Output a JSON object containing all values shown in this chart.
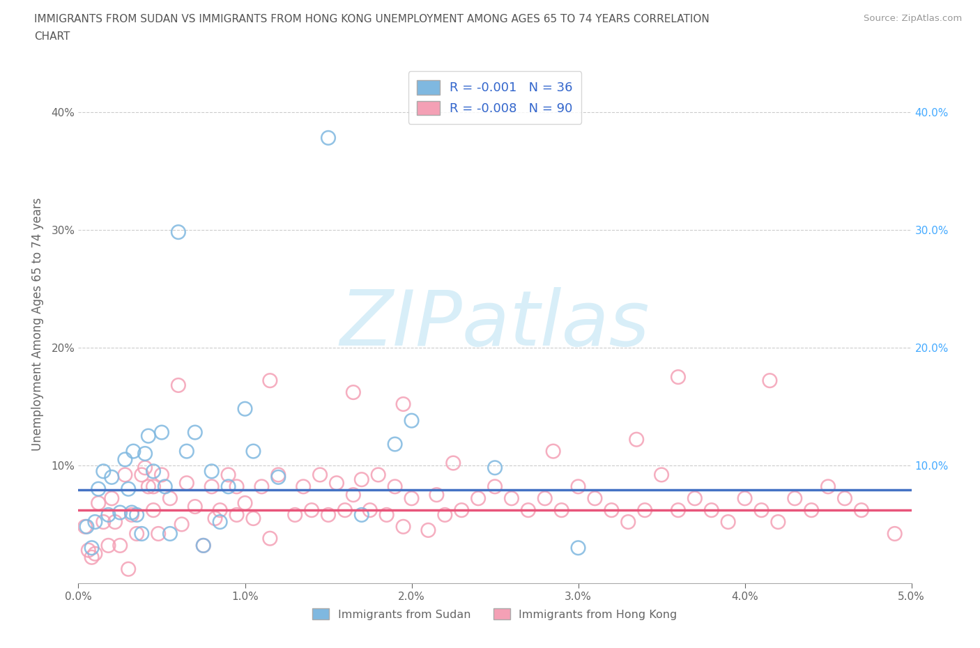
{
  "title_line1": "IMMIGRANTS FROM SUDAN VS IMMIGRANTS FROM HONG KONG UNEMPLOYMENT AMONG AGES 65 TO 74 YEARS CORRELATION",
  "title_line2": "CHART",
  "source": "Source: ZipAtlas.com",
  "ylabel_left": "Unemployment Among Ages 65 to 74 years",
  "xlim": [
    0.0,
    0.05
  ],
  "ylim": [
    0.0,
    0.44
  ],
  "xtick_vals": [
    0.0,
    0.01,
    0.02,
    0.03,
    0.04,
    0.05
  ],
  "xtick_labels": [
    "0.0%",
    "1.0%",
    "2.0%",
    "3.0%",
    "4.0%",
    "5.0%"
  ],
  "ytick_vals_left": [
    0.0,
    0.1,
    0.2,
    0.3,
    0.4
  ],
  "ytick_labels_left": [
    "",
    "10%",
    "20%",
    "30%",
    "40%"
  ],
  "ytick_vals_right": [
    0.1,
    0.2,
    0.3,
    0.4
  ],
  "ytick_labels_right": [
    "10.0%",
    "20.0%",
    "30.0%",
    "40.0%"
  ],
  "sudan_label": "Immigrants from Sudan",
  "sudan_color": "#7fb8e0",
  "sudan_R": "R = -0.001",
  "sudan_N": "N = 36",
  "sudan_trend_color": "#4472c4",
  "sudan_trend_y": 0.079,
  "sudan_x": [
    0.0005,
    0.0008,
    0.001,
    0.0012,
    0.0015,
    0.0018,
    0.002,
    0.0025,
    0.0028,
    0.003,
    0.0032,
    0.0033,
    0.0035,
    0.0038,
    0.004,
    0.0042,
    0.0045,
    0.005,
    0.0052,
    0.0055,
    0.006,
    0.0065,
    0.007,
    0.0075,
    0.008,
    0.0085,
    0.009,
    0.01,
    0.0105,
    0.012,
    0.015,
    0.017,
    0.019,
    0.02,
    0.025,
    0.03
  ],
  "sudan_y": [
    0.048,
    0.03,
    0.052,
    0.08,
    0.095,
    0.058,
    0.09,
    0.06,
    0.105,
    0.08,
    0.06,
    0.112,
    0.058,
    0.042,
    0.11,
    0.125,
    0.095,
    0.128,
    0.082,
    0.042,
    0.298,
    0.112,
    0.128,
    0.032,
    0.095,
    0.052,
    0.082,
    0.148,
    0.112,
    0.09,
    0.378,
    0.058,
    0.118,
    0.138,
    0.098,
    0.03
  ],
  "hk_label": "Immigrants from Hong Kong",
  "hk_color": "#f4a0b5",
  "hk_R": "R = -0.008",
  "hk_N": "N = 90",
  "hk_trend_color": "#e8557a",
  "hk_trend_y": 0.062,
  "hk_x": [
    0.0004,
    0.0006,
    0.0008,
    0.001,
    0.0012,
    0.0015,
    0.0018,
    0.002,
    0.0022,
    0.0025,
    0.0028,
    0.003,
    0.0032,
    0.0035,
    0.0038,
    0.004,
    0.0042,
    0.0045,
    0.0048,
    0.005,
    0.0055,
    0.006,
    0.0062,
    0.0065,
    0.007,
    0.0075,
    0.008,
    0.0082,
    0.0085,
    0.009,
    0.0095,
    0.01,
    0.0105,
    0.011,
    0.0115,
    0.012,
    0.013,
    0.0135,
    0.014,
    0.0145,
    0.015,
    0.0155,
    0.016,
    0.0165,
    0.017,
    0.0175,
    0.018,
    0.0185,
    0.019,
    0.0195,
    0.02,
    0.021,
    0.0215,
    0.022,
    0.023,
    0.024,
    0.025,
    0.026,
    0.027,
    0.028,
    0.029,
    0.03,
    0.031,
    0.032,
    0.033,
    0.034,
    0.035,
    0.036,
    0.037,
    0.038,
    0.039,
    0.04,
    0.041,
    0.042,
    0.043,
    0.044,
    0.045,
    0.046,
    0.047,
    0.049,
    0.036,
    0.0225,
    0.0115,
    0.0165,
    0.0285,
    0.0335,
    0.0195,
    0.0415,
    0.0095,
    0.0045
  ],
  "hk_y": [
    0.048,
    0.028,
    0.022,
    0.025,
    0.068,
    0.052,
    0.032,
    0.072,
    0.052,
    0.032,
    0.092,
    0.012,
    0.058,
    0.042,
    0.092,
    0.098,
    0.082,
    0.062,
    0.042,
    0.092,
    0.072,
    0.168,
    0.05,
    0.085,
    0.065,
    0.032,
    0.082,
    0.055,
    0.062,
    0.092,
    0.058,
    0.068,
    0.055,
    0.082,
    0.038,
    0.092,
    0.058,
    0.082,
    0.062,
    0.092,
    0.058,
    0.085,
    0.062,
    0.075,
    0.088,
    0.062,
    0.092,
    0.058,
    0.082,
    0.048,
    0.072,
    0.045,
    0.075,
    0.058,
    0.062,
    0.072,
    0.082,
    0.072,
    0.062,
    0.072,
    0.062,
    0.082,
    0.072,
    0.062,
    0.052,
    0.062,
    0.092,
    0.062,
    0.072,
    0.062,
    0.052,
    0.072,
    0.062,
    0.052,
    0.072,
    0.062,
    0.082,
    0.072,
    0.062,
    0.042,
    0.175,
    0.102,
    0.172,
    0.162,
    0.112,
    0.122,
    0.152,
    0.172,
    0.082,
    0.082
  ],
  "watermark": "ZIPatlas",
  "watermark_color": "#d8eef8",
  "legend_text_color": "#3366cc",
  "background_color": "#ffffff",
  "grid_color": "#cccccc",
  "title_color": "#555555",
  "axis_color": "#666666"
}
